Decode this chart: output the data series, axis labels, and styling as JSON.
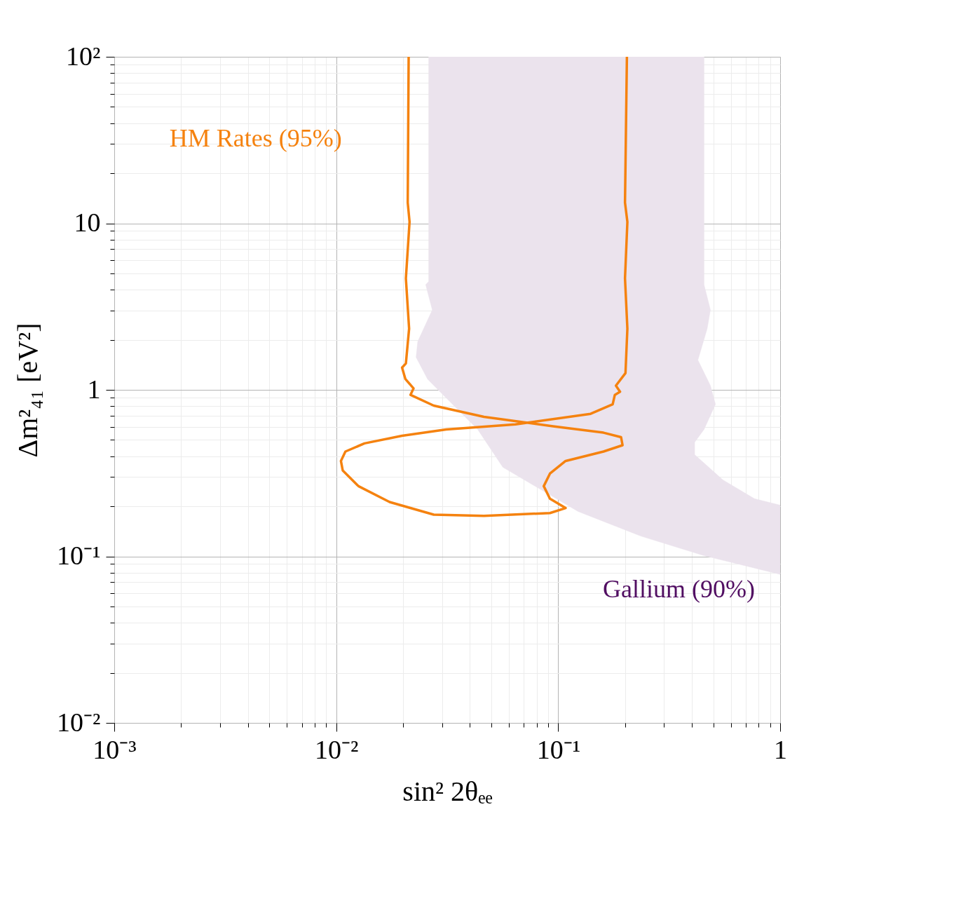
{
  "chart_data": {
    "type": "line",
    "xlabel": "sin² 2θₑₑ",
    "ylabel": "Δm²₄₁ [eV²]",
    "log": "xy",
    "grid": true,
    "xlim": [
      0.001,
      1
    ],
    "ylim": [
      0.01,
      100
    ],
    "xticks": [
      {
        "value": 0.001,
        "label": "10⁻³"
      },
      {
        "value": 0.002,
        "label": null
      },
      {
        "value": 0.003,
        "label": null
      },
      {
        "value": 0.004,
        "label": null
      },
      {
        "value": 0.005,
        "label": null
      },
      {
        "value": 0.006,
        "label": null
      },
      {
        "value": 0.007,
        "label": null
      },
      {
        "value": 0.008,
        "label": null
      },
      {
        "value": 0.009,
        "label": null
      },
      {
        "value": 0.01,
        "label": "10⁻²"
      },
      {
        "value": 0.02,
        "label": null
      },
      {
        "value": 0.03,
        "label": null
      },
      {
        "value": 0.04,
        "label": null
      },
      {
        "value": 0.05,
        "label": null
      },
      {
        "value": 0.06,
        "label": null
      },
      {
        "value": 0.07,
        "label": null
      },
      {
        "value": 0.08,
        "label": null
      },
      {
        "value": 0.09,
        "label": null
      },
      {
        "value": 0.1,
        "label": "10⁻¹"
      },
      {
        "value": 0.2,
        "label": null
      },
      {
        "value": 0.3,
        "label": null
      },
      {
        "value": 0.4,
        "label": null
      },
      {
        "value": 0.5,
        "label": null
      },
      {
        "value": 0.6,
        "label": null
      },
      {
        "value": 0.7,
        "label": null
      },
      {
        "value": 0.8,
        "label": null
      },
      {
        "value": 0.9,
        "label": null
      },
      {
        "value": 1,
        "label": "1"
      }
    ],
    "yticks": [
      {
        "value": 0.01,
        "label": "10⁻²"
      },
      {
        "value": 0.02,
        "label": null
      },
      {
        "value": 0.03,
        "label": null
      },
      {
        "value": 0.04,
        "label": null
      },
      {
        "value": 0.05,
        "label": null
      },
      {
        "value": 0.06,
        "label": null
      },
      {
        "value": 0.07,
        "label": null
      },
      {
        "value": 0.08,
        "label": null
      },
      {
        "value": 0.09,
        "label": null
      },
      {
        "value": 0.1,
        "label": "10⁻¹"
      },
      {
        "value": 0.2,
        "label": null
      },
      {
        "value": 0.3,
        "label": null
      },
      {
        "value": 0.4,
        "label": null
      },
      {
        "value": 0.5,
        "label": null
      },
      {
        "value": 0.6,
        "label": null
      },
      {
        "value": 0.7,
        "label": null
      },
      {
        "value": 0.8,
        "label": null
      },
      {
        "value": 0.9,
        "label": null
      },
      {
        "value": 1,
        "label": "1"
      },
      {
        "value": 2,
        "label": null
      },
      {
        "value": 3,
        "label": null
      },
      {
        "value": 4,
        "label": null
      },
      {
        "value": 5,
        "label": null
      },
      {
        "value": 6,
        "label": null
      },
      {
        "value": 7,
        "label": null
      },
      {
        "value": 8,
        "label": null
      },
      {
        "value": 9,
        "label": null
      },
      {
        "value": 10,
        "label": "10"
      },
      {
        "value": 20,
        "label": null
      },
      {
        "value": 30,
        "label": null
      },
      {
        "value": 40,
        "label": null
      },
      {
        "value": 50,
        "label": null
      },
      {
        "value": 60,
        "label": null
      },
      {
        "value": 70,
        "label": null
      },
      {
        "value": 80,
        "label": null
      },
      {
        "value": 90,
        "label": null
      },
      {
        "value": 100,
        "label": "10²"
      }
    ],
    "series": [
      {
        "name": "Gallium (90%)",
        "type": "area",
        "color": "#ebe3ed",
        "x": [
          0.0261,
          0.0261,
          0.0253,
          0.0271,
          0.0233,
          0.0229,
          0.0258,
          0.0334,
          0.0434,
          0.0563,
          0.123,
          0.237,
          0.454,
          1,
          1,
          0.766,
          0.552,
          0.412,
          0.412,
          0.454,
          0.511,
          0.485,
          0.426,
          0.469,
          0.485,
          0.454,
          0.454
        ],
        "values": [
          100,
          4.47,
          4.28,
          3.02,
          1.95,
          1.57,
          1.16,
          0.819,
          0.578,
          0.343,
          0.186,
          0.132,
          0.101,
          0.078,
          0.203,
          0.222,
          0.288,
          0.408,
          0.485,
          0.578,
          0.819,
          1.06,
          1.51,
          2.33,
          3.02,
          4.28,
          100
        ]
      },
      {
        "name": "HM Rates (95%)",
        "color": "#f5820f",
        "x": [
          0.0212,
          0.021,
          0.0214,
          0.0206,
          0.0213,
          0.0206,
          0.0198,
          0.0205,
          0.0223,
          0.0216,
          0.0275,
          0.0463,
          0.0949,
          0.16,
          0.192,
          0.195,
          0.16,
          0.108,
          0.0918,
          0.0861,
          0.0918,
          0.108,
          0.0918,
          0.0463,
          0.0275,
          0.0174,
          0.0126,
          0.0107,
          0.0105,
          0.011,
          0.0134,
          0.0198,
          0.0313,
          0.0642,
          0.14,
          0.176,
          0.18,
          0.19,
          0.182,
          0.201,
          0.205,
          0.2,
          0.205,
          0.2,
          0.204
        ],
        "values": [
          100,
          13.3,
          10.2,
          4.67,
          2.33,
          1.44,
          1.36,
          1.16,
          1.02,
          0.933,
          0.804,
          0.688,
          0.604,
          0.553,
          0.52,
          0.465,
          0.426,
          0.374,
          0.314,
          0.264,
          0.222,
          0.195,
          0.182,
          0.175,
          0.178,
          0.212,
          0.264,
          0.328,
          0.374,
          0.426,
          0.477,
          0.53,
          0.578,
          0.62,
          0.718,
          0.819,
          0.933,
          0.974,
          1.06,
          1.26,
          2.33,
          4.67,
          10.2,
          13.3,
          100
        ]
      }
    ]
  }
}
